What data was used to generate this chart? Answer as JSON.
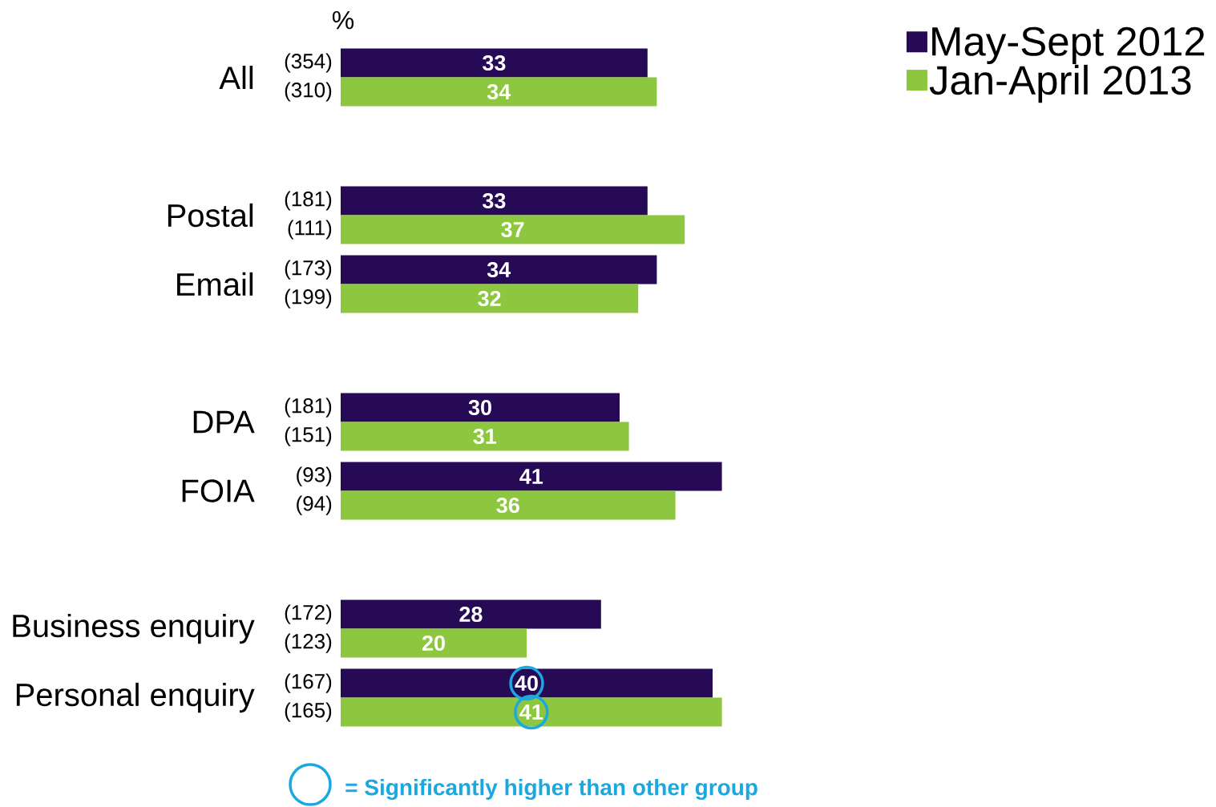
{
  "chart_data": {
    "type": "bar",
    "orientation": "horizontal",
    "xlabel": "%",
    "categories": [
      "All",
      null,
      "Postal",
      "Email",
      null,
      "DPA",
      "FOIA",
      null,
      "Business enquiry",
      "Personal enquiry"
    ],
    "series": [
      {
        "name": "May-Sept 2012",
        "color": "#260a56",
        "values": [
          33,
          null,
          33,
          34,
          null,
          30,
          41,
          null,
          28,
          40
        ]
      },
      {
        "name": "Jan-April 2013",
        "color": "#8dc63f",
        "values": [
          34,
          null,
          37,
          32,
          null,
          31,
          36,
          null,
          20,
          41
        ]
      }
    ],
    "data_labels": true,
    "legend": "top right",
    "annotations": [
      "(354)",
      "(310)",
      "(181)",
      "(111)",
      "(173)",
      "(199)",
      "(181)",
      "(151)",
      "(93)",
      "(94)",
      "(172)",
      "(123)",
      "(167)",
      "(165)",
      "= Significantly higher than other group"
    ]
  }
}
